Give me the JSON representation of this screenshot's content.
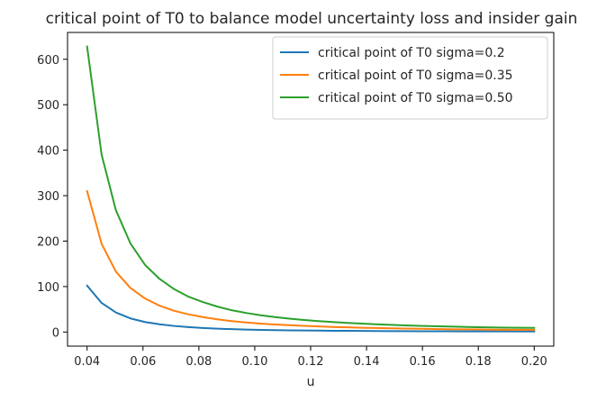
{
  "chart_data": {
    "type": "line",
    "title": "critical point of T0 to balance model uncertainty loss and insider gain",
    "xlabel": "u",
    "ylabel": "",
    "xlim": [
      0.033,
      0.207
    ],
    "ylim": [
      -31,
      659
    ],
    "xticks": [
      0.04,
      0.06,
      0.08,
      0.1,
      0.12,
      0.14,
      0.16,
      0.18,
      0.2
    ],
    "xtick_labels": [
      "0.04",
      "0.06",
      "0.08",
      "0.10",
      "0.12",
      "0.14",
      "0.16",
      "0.18",
      "0.20"
    ],
    "yticks": [
      0,
      100,
      200,
      300,
      400,
      500,
      600
    ],
    "ytick_labels": [
      "0",
      "100",
      "200",
      "300",
      "400",
      "500",
      "600"
    ],
    "grid": false,
    "legend_position": "top-right",
    "x": [
      0.04,
      0.0452,
      0.0503,
      0.0555,
      0.0607,
      0.0659,
      0.071,
      0.0762,
      0.0814,
      0.0866,
      0.0917,
      0.0969,
      0.1021,
      0.1072,
      0.1124,
      0.1176,
      0.1228,
      0.1279,
      0.1331,
      0.1383,
      0.1434,
      0.1486,
      0.1538,
      0.159,
      0.1641,
      0.1693,
      0.1745,
      0.1797,
      0.1848,
      0.19,
      0.2
    ],
    "series": [
      {
        "name": "critical point of T0 sigma=0.2",
        "color": "#1f77b4",
        "values": [
          102,
          64,
          43,
          30,
          22,
          17,
          13.5,
          11,
          9,
          7.5,
          6.4,
          5.5,
          4.8,
          4.3,
          3.8,
          3.4,
          3.1,
          2.8,
          2.6,
          2.4,
          2.2,
          2.0,
          1.9,
          1.8,
          1.7,
          1.6,
          1.5,
          1.45,
          1.4,
          1.35,
          1.3
        ]
      },
      {
        "name": "critical point of T0 sigma=0.35",
        "color": "#ff7f0e",
        "values": [
          310,
          194,
          133,
          97,
          74,
          58,
          47,
          39,
          33,
          28,
          24,
          21,
          18.5,
          16.5,
          15,
          13.5,
          12.3,
          11.2,
          10.3,
          9.5,
          8.8,
          8.2,
          7.6,
          7.1,
          6.7,
          6.3,
          5.9,
          5.6,
          5.3,
          5.0,
          4.7
        ]
      },
      {
        "name": "critical point of T0 sigma=0.50",
        "color": "#2ca02c",
        "values": [
          628,
          390,
          268,
          195,
          148,
          117,
          95,
          78,
          66,
          56,
          48,
          42,
          37,
          33,
          29.5,
          26.5,
          24,
          22,
          20,
          18.5,
          17,
          15.8,
          14.7,
          13.7,
          12.8,
          12,
          11.3,
          10.7,
          10.1,
          9.6,
          9.1
        ]
      }
    ]
  }
}
